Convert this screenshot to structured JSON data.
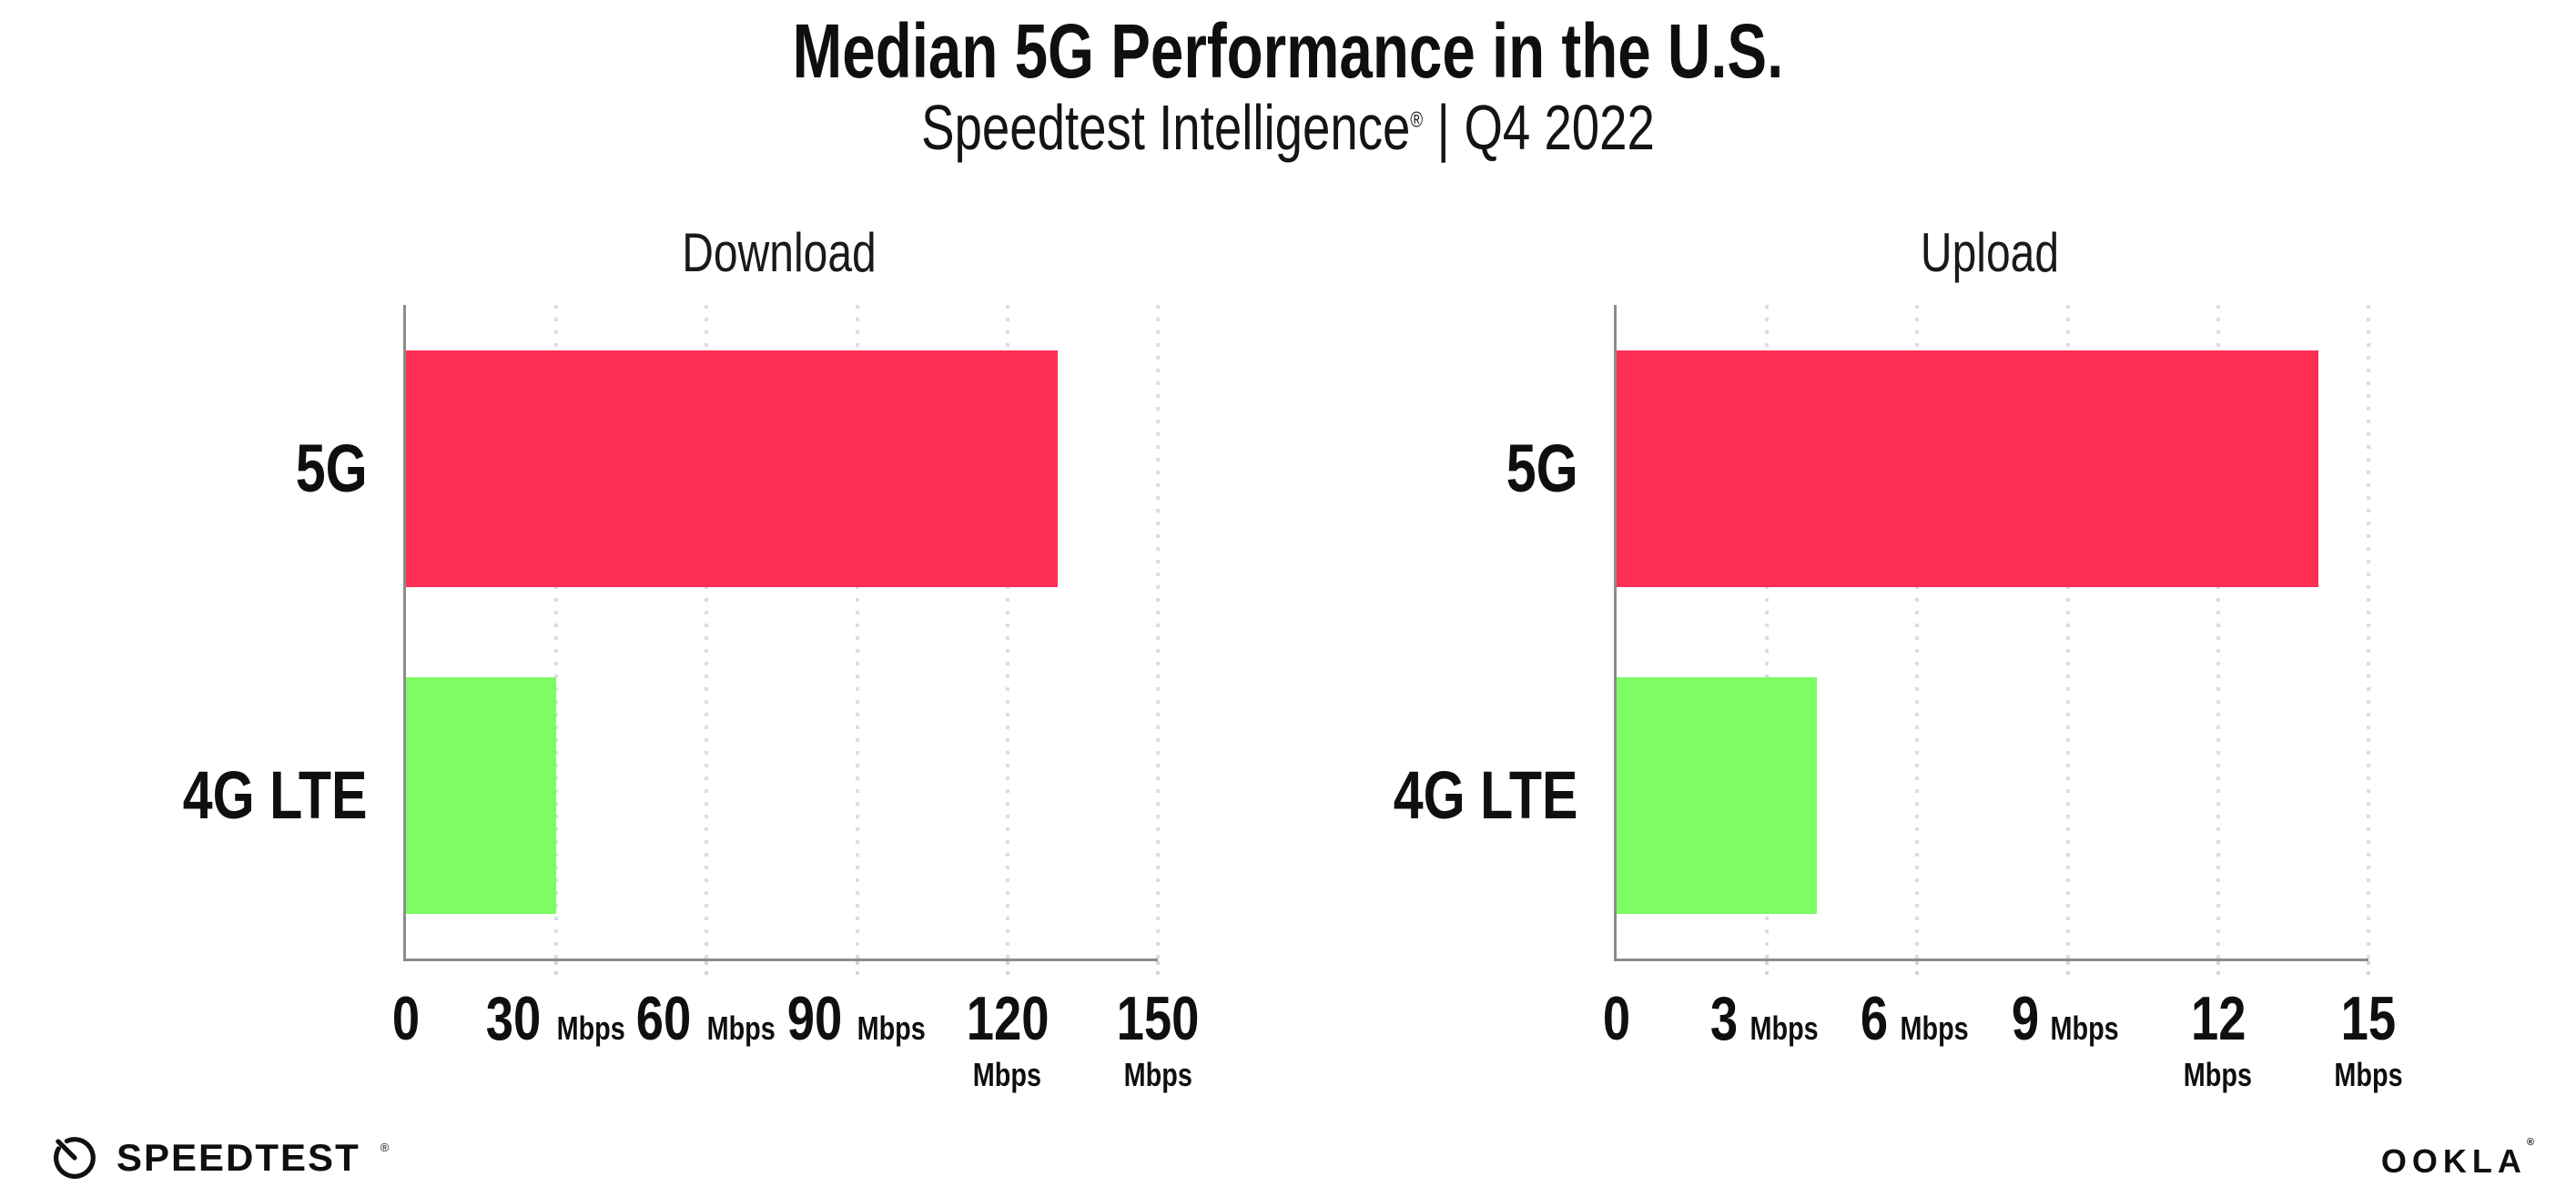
{
  "header": {
    "title": "Median 5G Performance in the U.S.",
    "subtitle_brand": "Speedtest Intelligence",
    "subtitle_reg": "®",
    "subtitle_sep": "|",
    "subtitle_period": "Q4 2022"
  },
  "footer": {
    "speedtest_label": "SPEEDTEST",
    "speedtest_reg": "®",
    "ookla_label": "OOKLA",
    "ookla_reg": "®"
  },
  "colors": {
    "bar_5g": "#FF2E55",
    "bar_4g_lte": "#7DFC64",
    "axis": "#8C8C8C",
    "gridline": "#DCDCE4",
    "text": "#0F0F0F"
  },
  "chart_data": [
    {
      "type": "bar",
      "orientation": "horizontal",
      "title": "Download",
      "categories": [
        "5G",
        "4G LTE"
      ],
      "values": [
        130,
        30
      ],
      "unit_label": "Mbps",
      "xlabel": "",
      "ylabel": "",
      "xlim": [
        0,
        150
      ],
      "xticks": [
        0,
        30,
        60,
        90,
        120,
        150
      ],
      "bar_colors": [
        "#FF2E55",
        "#7DFC64"
      ],
      "grid": "dotted-vertical",
      "legend": "none"
    },
    {
      "type": "bar",
      "orientation": "horizontal",
      "title": "Upload",
      "categories": [
        "5G",
        "4G LTE"
      ],
      "values": [
        14,
        4
      ],
      "unit_label": "Mbps",
      "xlabel": "",
      "ylabel": "",
      "xlim": [
        0,
        15
      ],
      "xticks": [
        0,
        3,
        6,
        9,
        12,
        15
      ],
      "bar_colors": [
        "#FF2E55",
        "#7DFC64"
      ],
      "grid": "dotted-vertical",
      "legend": "none"
    }
  ]
}
